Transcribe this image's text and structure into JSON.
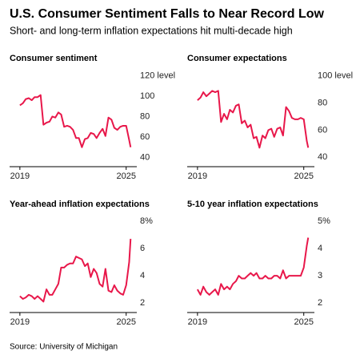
{
  "header": {
    "title": "U.S. Consumer Sentiment Falls to Near Record Low",
    "subtitle": "Short- and long-term inflation expectations hit multi-decade high"
  },
  "source": "Source: University of Michigan",
  "chart_data": [
    {
      "type": "line",
      "title": "Consumer sentiment",
      "color": "#e8174a",
      "x": [
        2019,
        2019.17,
        2019.33,
        2019.5,
        2019.67,
        2019.83,
        2020,
        2020.17,
        2020.33,
        2020.5,
        2020.67,
        2020.83,
        2021,
        2021.17,
        2021.33,
        2021.5,
        2021.67,
        2021.83,
        2022,
        2022.17,
        2022.33,
        2022.5,
        2022.67,
        2022.83,
        2023,
        2023.17,
        2023.33,
        2023.5,
        2023.67,
        2023.83,
        2024,
        2024.17,
        2024.33,
        2024.5,
        2024.67,
        2024.83,
        2025,
        2025.17,
        2025.25
      ],
      "values": [
        91,
        93,
        97,
        98,
        96,
        99,
        99,
        101,
        72,
        74,
        75,
        80,
        79,
        84,
        82,
        70,
        71,
        70,
        67,
        59,
        59,
        50,
        58,
        59,
        64,
        63,
        59,
        64,
        68,
        61,
        79,
        77,
        69,
        67,
        70,
        71,
        71,
        57,
        50
      ],
      "xlim": [
        2018.6,
        2025.6
      ],
      "xticks": [
        2019,
        2025
      ],
      "ylim": [
        31,
        125
      ],
      "yticks": [
        40,
        60,
        80,
        100,
        {
          "value": 120,
          "label": "120 level"
        }
      ]
    },
    {
      "type": "line",
      "title": "Consumer expectations",
      "color": "#e8174a",
      "x": [
        2019,
        2019.17,
        2019.33,
        2019.5,
        2019.67,
        2019.83,
        2020,
        2020.17,
        2020.33,
        2020.5,
        2020.67,
        2020.83,
        2021,
        2021.17,
        2021.33,
        2021.5,
        2021.67,
        2021.83,
        2022,
        2022.17,
        2022.33,
        2022.5,
        2022.67,
        2022.83,
        2023,
        2023.17,
        2023.33,
        2023.5,
        2023.67,
        2023.83,
        2024,
        2024.17,
        2024.33,
        2024.5,
        2024.67,
        2024.83,
        2025,
        2025.17,
        2025.25
      ],
      "values": [
        82,
        84,
        88,
        85,
        87,
        89,
        88,
        89,
        66,
        72,
        68,
        75,
        73,
        78,
        79,
        65,
        67,
        62,
        64,
        54,
        55,
        47,
        56,
        54,
        60,
        61,
        55,
        61,
        62,
        56,
        77,
        74,
        69,
        68,
        68,
        69,
        68,
        52,
        47
      ],
      "xlim": [
        2018.6,
        2025.6
      ],
      "xticks": [
        2019,
        2025
      ],
      "ylim": [
        33,
        104
      ],
      "yticks": [
        40,
        60,
        80,
        {
          "value": 100,
          "label": "100 level"
        }
      ]
    },
    {
      "type": "line",
      "title": "Year-ahead inflation expectations",
      "color": "#e8174a",
      "x": [
        2019,
        2019.17,
        2019.33,
        2019.5,
        2019.67,
        2019.83,
        2020,
        2020.17,
        2020.33,
        2020.5,
        2020.67,
        2020.83,
        2021,
        2021.17,
        2021.33,
        2021.5,
        2021.67,
        2021.83,
        2022,
        2022.17,
        2022.33,
        2022.5,
        2022.67,
        2022.83,
        2023,
        2023.17,
        2023.33,
        2023.5,
        2023.67,
        2023.83,
        2024,
        2024.17,
        2024.33,
        2024.5,
        2024.67,
        2024.83,
        2025,
        2025.17,
        2025.25
      ],
      "values": [
        2.5,
        2.3,
        2.4,
        2.6,
        2.5,
        2.3,
        2.5,
        2.3,
        2.1,
        3.0,
        2.6,
        2.6,
        3.0,
        3.4,
        4.6,
        4.6,
        4.8,
        4.9,
        4.9,
        5.4,
        5.3,
        5.2,
        4.7,
        4.9,
        3.9,
        4.5,
        4.2,
        3.4,
        3.2,
        4.5,
        2.9,
        2.8,
        3.3,
        2.9,
        2.7,
        2.6,
        3.3,
        5.0,
        6.7
      ],
      "xlim": [
        2018.6,
        2025.6
      ],
      "xticks": [
        2019,
        2025
      ],
      "ylim": [
        1.3,
        8.35
      ],
      "yticks": [
        2,
        4,
        6,
        {
          "value": 8,
          "label": "8%"
        }
      ]
    },
    {
      "type": "line",
      "title": "5-10 year inflation expectations",
      "color": "#e8174a",
      "x": [
        2019,
        2019.17,
        2019.33,
        2019.5,
        2019.67,
        2019.83,
        2020,
        2020.17,
        2020.33,
        2020.5,
        2020.67,
        2020.83,
        2021,
        2021.17,
        2021.33,
        2021.5,
        2021.67,
        2021.83,
        2022,
        2022.17,
        2022.33,
        2022.5,
        2022.67,
        2022.83,
        2023,
        2023.17,
        2023.33,
        2023.5,
        2023.67,
        2023.83,
        2024,
        2024.17,
        2024.33,
        2024.5,
        2024.67,
        2024.83,
        2025,
        2025.17,
        2025.25
      ],
      "values": [
        2.5,
        2.3,
        2.6,
        2.4,
        2.3,
        2.4,
        2.5,
        2.3,
        2.7,
        2.5,
        2.6,
        2.5,
        2.7,
        2.8,
        3.0,
        2.9,
        2.9,
        3.0,
        3.1,
        3.0,
        3.1,
        2.9,
        2.9,
        3.0,
        2.9,
        2.9,
        3.0,
        3.0,
        2.9,
        3.2,
        2.9,
        3.0,
        3.0,
        3.0,
        3.0,
        3.0,
        3.3,
        4.1,
        4.4
      ],
      "xlim": [
        2018.6,
        2025.6
      ],
      "xticks": [
        2019,
        2025
      ],
      "ylim": [
        1.65,
        5.18
      ],
      "yticks": [
        2,
        3,
        4,
        {
          "value": 5,
          "label": "5%"
        }
      ]
    }
  ]
}
